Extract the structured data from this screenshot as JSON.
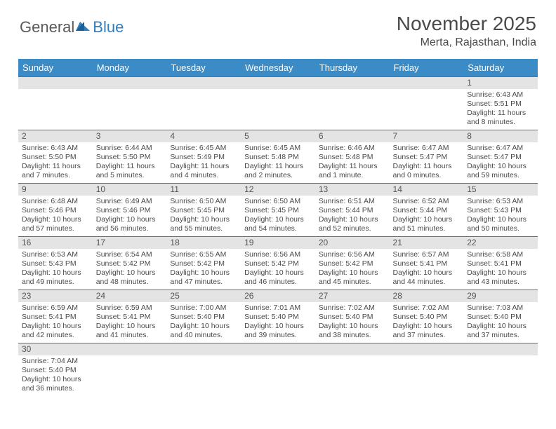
{
  "brand": {
    "part1": "General",
    "part2": "Blue"
  },
  "title": "November 2025",
  "location": "Merta, Rajasthan, India",
  "colors": {
    "header_bg": "#3b8bc6",
    "header_text": "#ffffff",
    "daynum_bg": "#e4e4e4",
    "daynum_text": "#555555",
    "body_text": "#4a4a4a",
    "row_border": "#2f7ec0",
    "brand_gray": "#5a5a5a",
    "brand_blue": "#2f7ec0"
  },
  "weekdays": [
    "Sunday",
    "Monday",
    "Tuesday",
    "Wednesday",
    "Thursday",
    "Friday",
    "Saturday"
  ],
  "labels": {
    "sunrise": "Sunrise:",
    "sunset": "Sunset:",
    "daylight": "Daylight:"
  },
  "weeks": [
    [
      null,
      null,
      null,
      null,
      null,
      null,
      {
        "n": "1",
        "sunrise": "6:43 AM",
        "sunset": "5:51 PM",
        "daylight": "11 hours and 8 minutes."
      }
    ],
    [
      {
        "n": "2",
        "sunrise": "6:43 AM",
        "sunset": "5:50 PM",
        "daylight": "11 hours and 7 minutes."
      },
      {
        "n": "3",
        "sunrise": "6:44 AM",
        "sunset": "5:50 PM",
        "daylight": "11 hours and 5 minutes."
      },
      {
        "n": "4",
        "sunrise": "6:45 AM",
        "sunset": "5:49 PM",
        "daylight": "11 hours and 4 minutes."
      },
      {
        "n": "5",
        "sunrise": "6:45 AM",
        "sunset": "5:48 PM",
        "daylight": "11 hours and 2 minutes."
      },
      {
        "n": "6",
        "sunrise": "6:46 AM",
        "sunset": "5:48 PM",
        "daylight": "11 hours and 1 minute."
      },
      {
        "n": "7",
        "sunrise": "6:47 AM",
        "sunset": "5:47 PM",
        "daylight": "11 hours and 0 minutes."
      },
      {
        "n": "8",
        "sunrise": "6:47 AM",
        "sunset": "5:47 PM",
        "daylight": "10 hours and 59 minutes."
      }
    ],
    [
      {
        "n": "9",
        "sunrise": "6:48 AM",
        "sunset": "5:46 PM",
        "daylight": "10 hours and 57 minutes."
      },
      {
        "n": "10",
        "sunrise": "6:49 AM",
        "sunset": "5:46 PM",
        "daylight": "10 hours and 56 minutes."
      },
      {
        "n": "11",
        "sunrise": "6:50 AM",
        "sunset": "5:45 PM",
        "daylight": "10 hours and 55 minutes."
      },
      {
        "n": "12",
        "sunrise": "6:50 AM",
        "sunset": "5:45 PM",
        "daylight": "10 hours and 54 minutes."
      },
      {
        "n": "13",
        "sunrise": "6:51 AM",
        "sunset": "5:44 PM",
        "daylight": "10 hours and 52 minutes."
      },
      {
        "n": "14",
        "sunrise": "6:52 AM",
        "sunset": "5:44 PM",
        "daylight": "10 hours and 51 minutes."
      },
      {
        "n": "15",
        "sunrise": "6:53 AM",
        "sunset": "5:43 PM",
        "daylight": "10 hours and 50 minutes."
      }
    ],
    [
      {
        "n": "16",
        "sunrise": "6:53 AM",
        "sunset": "5:43 PM",
        "daylight": "10 hours and 49 minutes."
      },
      {
        "n": "17",
        "sunrise": "6:54 AM",
        "sunset": "5:42 PM",
        "daylight": "10 hours and 48 minutes."
      },
      {
        "n": "18",
        "sunrise": "6:55 AM",
        "sunset": "5:42 PM",
        "daylight": "10 hours and 47 minutes."
      },
      {
        "n": "19",
        "sunrise": "6:56 AM",
        "sunset": "5:42 PM",
        "daylight": "10 hours and 46 minutes."
      },
      {
        "n": "20",
        "sunrise": "6:56 AM",
        "sunset": "5:42 PM",
        "daylight": "10 hours and 45 minutes."
      },
      {
        "n": "21",
        "sunrise": "6:57 AM",
        "sunset": "5:41 PM",
        "daylight": "10 hours and 44 minutes."
      },
      {
        "n": "22",
        "sunrise": "6:58 AM",
        "sunset": "5:41 PM",
        "daylight": "10 hours and 43 minutes."
      }
    ],
    [
      {
        "n": "23",
        "sunrise": "6:59 AM",
        "sunset": "5:41 PM",
        "daylight": "10 hours and 42 minutes."
      },
      {
        "n": "24",
        "sunrise": "6:59 AM",
        "sunset": "5:41 PM",
        "daylight": "10 hours and 41 minutes."
      },
      {
        "n": "25",
        "sunrise": "7:00 AM",
        "sunset": "5:40 PM",
        "daylight": "10 hours and 40 minutes."
      },
      {
        "n": "26",
        "sunrise": "7:01 AM",
        "sunset": "5:40 PM",
        "daylight": "10 hours and 39 minutes."
      },
      {
        "n": "27",
        "sunrise": "7:02 AM",
        "sunset": "5:40 PM",
        "daylight": "10 hours and 38 minutes."
      },
      {
        "n": "28",
        "sunrise": "7:02 AM",
        "sunset": "5:40 PM",
        "daylight": "10 hours and 37 minutes."
      },
      {
        "n": "29",
        "sunrise": "7:03 AM",
        "sunset": "5:40 PM",
        "daylight": "10 hours and 37 minutes."
      }
    ],
    [
      {
        "n": "30",
        "sunrise": "7:04 AM",
        "sunset": "5:40 PM",
        "daylight": "10 hours and 36 minutes."
      },
      null,
      null,
      null,
      null,
      null,
      null
    ]
  ]
}
